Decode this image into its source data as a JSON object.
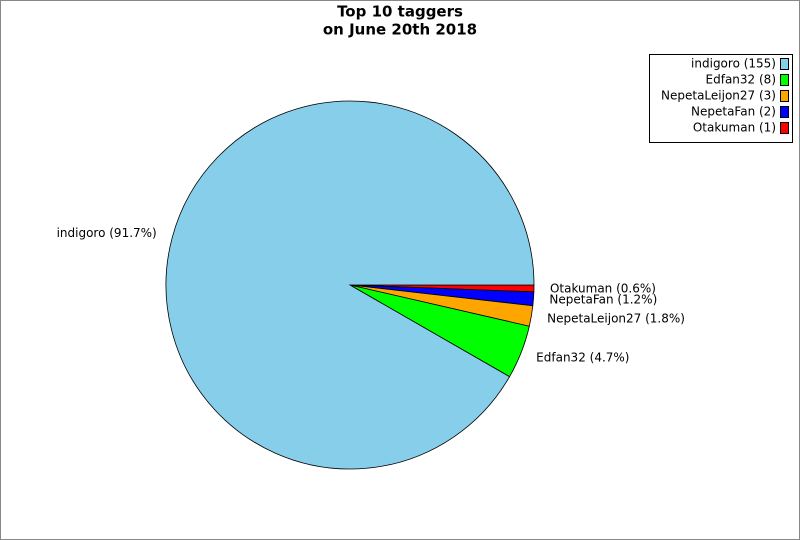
{
  "chart_data": {
    "type": "pie",
    "title": "Top 10 taggers",
    "subtitle": "on June 20th 2018",
    "categories": [
      "indigoro",
      "Edfan32",
      "NepetaLeijon27",
      "NepetaFan",
      "Otakuman"
    ],
    "values": [
      91.7,
      4.7,
      1.8,
      1.2,
      0.6
    ],
    "value_labels": [
      "indigoro (91.7%)",
      "Edfan32 (4.7%)",
      "NepetaLeijon27 (1.8%)",
      "NepetaFan (1.2%)",
      "Otakuman (0.6%)"
    ],
    "legend_labels": [
      "indigoro (155)",
      "Edfan32 (8)",
      "NepetaLeijon27 (3)",
      "NepetaFan (2)",
      "Otakuman (1)"
    ],
    "colors": [
      "#87ceeb",
      "#00ff00",
      "#ffa500",
      "#0000ff",
      "#ff0000"
    ],
    "legend": "top-right"
  }
}
